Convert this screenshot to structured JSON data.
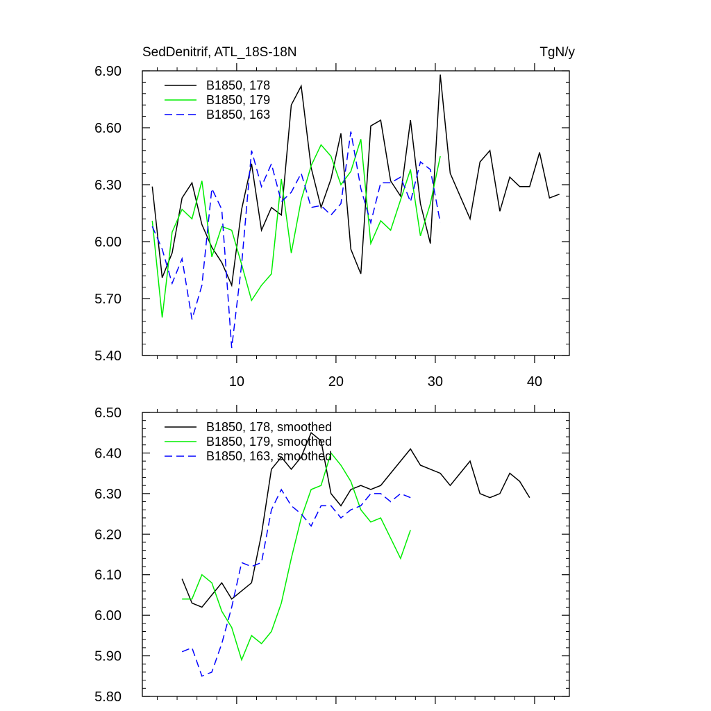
{
  "chart_data": [
    {
      "type": "line",
      "title": "SedDenitrif, ATL_18S-18N",
      "units": "TgN/y",
      "xlim": [
        0.5,
        43.5
      ],
      "ylim": [
        5.4,
        6.9
      ],
      "yticks": [
        5.4,
        5.7,
        6.0,
        6.3,
        6.6,
        6.9
      ],
      "ytick_labels": [
        "5.40",
        "5.70",
        "6.00",
        "6.30",
        "6.60",
        "6.90"
      ],
      "xticks": [
        10,
        20,
        30,
        40
      ],
      "xtick_labels": [
        "10",
        "20",
        "30",
        "40"
      ],
      "legend_position": "top-left",
      "series": [
        {
          "name": "B1850, 178",
          "color": "#000000",
          "dash": "solid",
          "x": [
            1.5,
            2.5,
            3.5,
            4.5,
            5.5,
            6.5,
            7.5,
            8.5,
            9.5,
            10.5,
            11.5,
            12.5,
            13.5,
            14.5,
            15.5,
            16.5,
            17.5,
            18.5,
            19.5,
            20.5,
            21.5,
            22.5,
            23.5,
            24.5,
            25.5,
            26.5,
            27.5,
            28.5,
            29.5,
            30.5,
            31.5,
            32.5,
            33.5,
            34.5,
            35.5,
            36.5,
            37.5,
            38.5,
            39.5,
            40.5,
            41.5,
            42.5
          ],
          "values": [
            6.29,
            5.81,
            5.94,
            6.23,
            6.31,
            6.09,
            5.97,
            5.89,
            5.77,
            6.17,
            6.41,
            6.06,
            6.18,
            6.14,
            6.72,
            6.82,
            6.39,
            6.18,
            6.33,
            6.57,
            5.96,
            5.83,
            6.61,
            6.64,
            6.32,
            6.24,
            6.64,
            6.2,
            5.99,
            6.88,
            6.36,
            6.24,
            6.12,
            6.42,
            6.48,
            6.16,
            6.34,
            6.29,
            6.29,
            6.47,
            6.23,
            6.25
          ]
        },
        {
          "name": "B1850, 179",
          "color": "#00ee00",
          "dash": "solid",
          "x": [
            1.5,
            2.5,
            3.5,
            4.5,
            5.5,
            6.5,
            7.5,
            8.5,
            9.5,
            10.5,
            11.5,
            12.5,
            13.5,
            14.5,
            15.5,
            16.5,
            17.5,
            18.5,
            19.5,
            20.5,
            21.5,
            22.5,
            23.5,
            24.5,
            25.5,
            26.5,
            27.5,
            28.5,
            29.5,
            30.5
          ],
          "values": [
            6.11,
            5.6,
            6.05,
            6.17,
            6.12,
            6.32,
            5.92,
            6.08,
            6.06,
            5.88,
            5.69,
            5.77,
            5.83,
            6.33,
            5.94,
            6.22,
            6.4,
            6.51,
            6.45,
            6.3,
            6.37,
            6.54,
            5.99,
            6.11,
            6.06,
            6.22,
            6.38,
            6.03,
            6.2,
            6.45
          ]
        },
        {
          "name": "B1850, 163",
          "color": "#0000ff",
          "dash": "dashed",
          "x": [
            1.5,
            2.5,
            3.5,
            4.5,
            5.5,
            6.5,
            7.5,
            8.5,
            9.5,
            10.5,
            11.5,
            12.5,
            13.5,
            14.5,
            15.5,
            16.5,
            17.5,
            18.5,
            19.5,
            20.5,
            21.5,
            22.5,
            23.5,
            24.5,
            25.5,
            26.5,
            27.5,
            28.5,
            29.5,
            30.5
          ],
          "values": [
            6.08,
            5.96,
            5.78,
            5.91,
            5.59,
            5.77,
            6.28,
            6.17,
            5.44,
            5.88,
            6.48,
            6.29,
            6.41,
            6.21,
            6.26,
            6.36,
            6.18,
            6.19,
            6.14,
            6.2,
            6.58,
            6.28,
            6.1,
            6.31,
            6.31,
            6.34,
            6.21,
            6.42,
            6.38,
            6.1
          ]
        }
      ]
    },
    {
      "type": "line",
      "xlim": [
        0.5,
        43.5
      ],
      "ylim": [
        5.8,
        6.5
      ],
      "yticks": [
        5.8,
        5.9,
        6.0,
        6.1,
        6.2,
        6.3,
        6.4,
        6.5
      ],
      "ytick_labels": [
        "5.80",
        "5.90",
        "6.00",
        "6.10",
        "6.20",
        "6.30",
        "6.40",
        "6.50"
      ],
      "xticks": [
        10,
        20,
        30,
        40
      ],
      "legend_position": "top-left",
      "series": [
        {
          "name": "B1850, 178, smoothed",
          "color": "#000000",
          "dash": "solid",
          "x": [
            4.5,
            5.5,
            6.5,
            7.5,
            8.5,
            9.5,
            10.5,
            11.5,
            12.5,
            13.5,
            14.5,
            15.5,
            16.5,
            17.5,
            18.5,
            19.5,
            20.5,
            21.5,
            22.5,
            23.5,
            24.5,
            25.5,
            26.5,
            27.5,
            28.5,
            29.5,
            30.5,
            31.5,
            32.5,
            33.5,
            34.5,
            35.5,
            36.5,
            37.5,
            38.5,
            39.5
          ],
          "values": [
            6.09,
            6.03,
            6.02,
            6.05,
            6.08,
            6.04,
            6.06,
            6.08,
            6.2,
            6.36,
            6.39,
            6.36,
            6.39,
            6.45,
            6.43,
            6.3,
            6.27,
            6.31,
            6.32,
            6.31,
            6.32,
            6.35,
            6.38,
            6.41,
            6.37,
            6.36,
            6.35,
            6.32,
            6.35,
            6.38,
            6.3,
            6.29,
            6.3,
            6.35,
            6.33,
            6.29
          ]
        },
        {
          "name": "B1850, 179, smoothed",
          "color": "#00ee00",
          "dash": "solid",
          "x": [
            4.5,
            5.5,
            6.5,
            7.5,
            8.5,
            9.5,
            10.5,
            11.5,
            12.5,
            13.5,
            14.5,
            15.5,
            16.5,
            17.5,
            18.5,
            19.5,
            20.5,
            21.5,
            22.5,
            23.5,
            24.5,
            25.5,
            26.5,
            27.5
          ],
          "values": [
            6.04,
            6.04,
            6.1,
            6.08,
            6.01,
            5.97,
            5.89,
            5.95,
            5.93,
            5.96,
            6.03,
            6.14,
            6.24,
            6.31,
            6.32,
            6.4,
            6.37,
            6.33,
            6.26,
            6.23,
            6.24,
            6.19,
            6.14,
            6.21
          ]
        },
        {
          "name": "B1850, 163, smoothed",
          "color": "#0000ff",
          "dash": "dashed",
          "x": [
            4.5,
            5.5,
            6.5,
            7.5,
            8.5,
            9.5,
            10.5,
            11.5,
            12.5,
            13.5,
            14.5,
            15.5,
            16.5,
            17.5,
            18.5,
            19.5,
            20.5,
            21.5,
            22.5,
            23.5,
            24.5,
            25.5,
            26.5,
            27.5
          ],
          "values": [
            5.91,
            5.92,
            5.85,
            5.86,
            5.93,
            6.02,
            6.13,
            6.12,
            6.13,
            6.26,
            6.31,
            6.27,
            6.25,
            6.22,
            6.27,
            6.27,
            6.24,
            6.26,
            6.27,
            6.3,
            6.3,
            6.28,
            6.3,
            6.29
          ]
        }
      ]
    }
  ]
}
